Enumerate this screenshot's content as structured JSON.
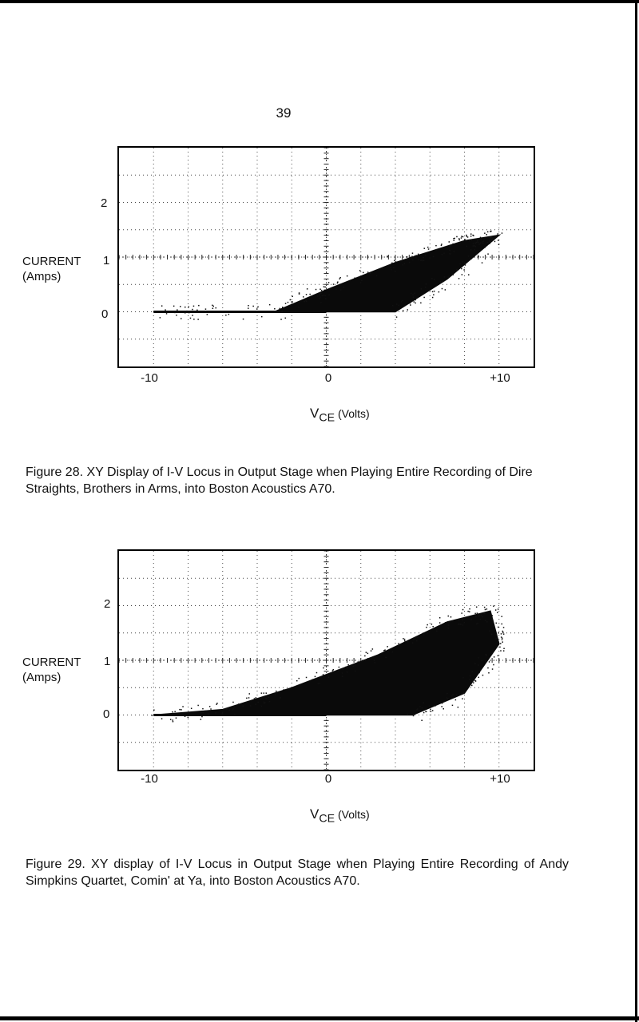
{
  "page": {
    "number": "39"
  },
  "figures": [
    {
      "id": "fig28",
      "ylabel_line1": "CURRENT",
      "ylabel_line2": "(Amps)",
      "yticks": [
        "2",
        "1",
        "0"
      ],
      "xticks": [
        "-10",
        "0",
        "+10"
      ],
      "xlabel_main": "V",
      "xlabel_sub": "CE",
      "xlabel_unit": "(Volts)",
      "caption": "Figure 28.  XY Display of I-V Locus in Output Stage when Playing Entire Recording of Dire Straights, Brothers in Arms, into Boston Acoustics A70."
    },
    {
      "id": "fig29",
      "ylabel_line1": "CURRENT",
      "ylabel_line2": "(Amps)",
      "yticks": [
        "2",
        "1",
        "0"
      ],
      "xticks": [
        "-10",
        "0",
        "+10"
      ],
      "xlabel_main": "V",
      "xlabel_sub": "CE",
      "xlabel_unit": "(Volts)",
      "caption": "Figure 29.   XY display of I-V Locus in Output Stage when Playing Entire Recording of  Andy Simpkins Quartet, Comin' at Ya, into Boston Acoustics A70."
    }
  ],
  "chart_data": [
    {
      "type": "scatter",
      "xlabel": "VCE (Volts)",
      "ylabel": "CURRENT (Amps)",
      "xlim": [
        -12,
        12
      ],
      "ylim": [
        -1,
        3
      ],
      "x_ticks": [
        -10,
        0,
        10
      ],
      "y_ticks": [
        0,
        1,
        2
      ],
      "grid": true,
      "description_points": [
        {
          "x": -10,
          "y": 0
        },
        {
          "x": -3,
          "y": 0
        },
        {
          "x": 0,
          "y": 0.4
        },
        {
          "x": 4,
          "y": 0.9
        },
        {
          "x": 8,
          "y": 1.3
        },
        {
          "x": 10,
          "y": 1.4
        },
        {
          "x": 7,
          "y": 0.6
        },
        {
          "x": 4,
          "y": 0
        }
      ]
    },
    {
      "type": "scatter",
      "xlabel": "VCE (Volts)",
      "ylabel": "CURRENT (Amps)",
      "xlim": [
        -12,
        12
      ],
      "ylim": [
        -1,
        3
      ],
      "x_ticks": [
        -10,
        0,
        10
      ],
      "y_ticks": [
        0,
        1,
        2
      ],
      "grid": true,
      "description_points": [
        {
          "x": -10,
          "y": 0
        },
        {
          "x": -6,
          "y": 0.1
        },
        {
          "x": -2,
          "y": 0.5
        },
        {
          "x": 3,
          "y": 1.1
        },
        {
          "x": 7,
          "y": 1.7
        },
        {
          "x": 9.5,
          "y": 1.9
        },
        {
          "x": 10,
          "y": 1.3
        },
        {
          "x": 8,
          "y": 0.4
        },
        {
          "x": 5,
          "y": 0
        }
      ]
    }
  ]
}
